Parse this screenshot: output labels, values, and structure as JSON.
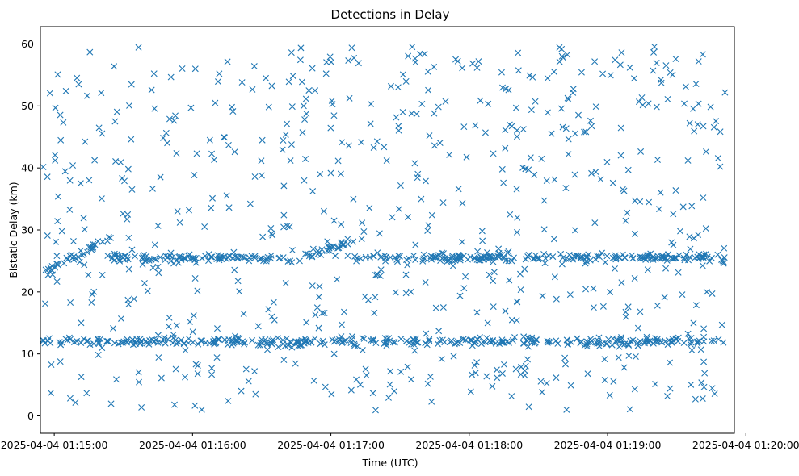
{
  "chart_data": {
    "type": "scatter",
    "title": "Detections in Delay",
    "xlabel": "Time (UTC)",
    "ylabel": "Bistatic Delay (km)",
    "marker": "x",
    "color": "#1f77b4",
    "grid": false,
    "x_range": [
      "2025-04-04 01:14:54",
      "2025-04-04 01:19:55"
    ],
    "ylim": [
      -2.8,
      62.8
    ],
    "x_ticks": [
      "2025-04-04 01:15:00",
      "2025-04-04 01:16:00",
      "2025-04-04 01:17:00",
      "2025-04-04 01:18:00",
      "2025-04-04 01:19:00",
      "2025-04-04 01:20:00"
    ],
    "y_ticks": [
      "0",
      "10",
      "20",
      "30",
      "40",
      "50",
      "60"
    ],
    "x_start": "2025-04-04 01:14:55",
    "x_end": "2025-04-04 01:19:51",
    "series_description": "~1300 detections: uniform clutter from 0 to 60 km plus a track near 12 km, a track near 25 km rising from 23 to 30 km at the start, and a track near 25 km with a ramp from 24 to 28 km around 01:16:40-01:17:10"
  }
}
